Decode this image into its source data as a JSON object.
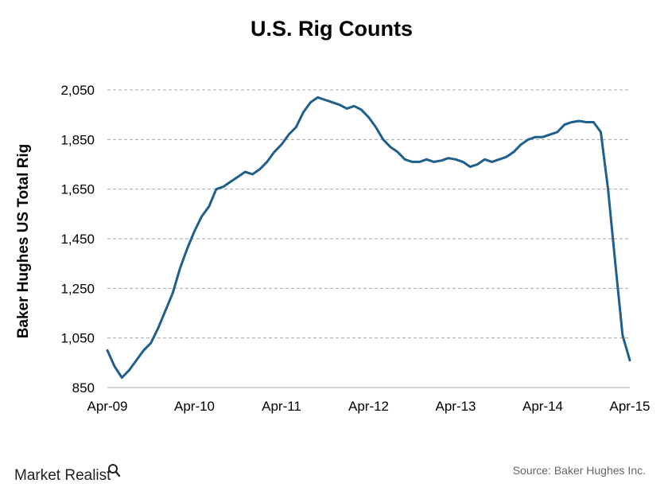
{
  "brand": {
    "name": "Market Realist",
    "icon": "magnifier-icon"
  },
  "source": "Source: Baker Hughes Inc.",
  "chart_data": {
    "type": "line",
    "title": "U.S. Rig Counts",
    "xlabel": "",
    "ylabel": "Baker Hughes US Total Rig",
    "x_ticks": [
      "Apr-09",
      "Apr-10",
      "Apr-11",
      "Apr-12",
      "Apr-13",
      "Apr-14",
      "Apr-15"
    ],
    "xlim": [
      "2009-04",
      "2015-04"
    ],
    "y_ticks": [
      "2,050",
      "1,850",
      "1,650",
      "1,450",
      "1,250",
      "1,050",
      "850"
    ],
    "ylim": [
      850,
      2050
    ],
    "grid": "horizontal dashed",
    "line_color": "#1f5f8b",
    "series": [
      {
        "x": [
          "2009-04",
          "2009-05",
          "2009-06",
          "2009-07",
          "2009-08",
          "2009-09",
          "2009-10",
          "2009-11",
          "2009-12",
          "2010-01",
          "2010-02",
          "2010-03",
          "2010-04",
          "2010-05",
          "2010-06",
          "2010-07",
          "2010-08",
          "2010-09",
          "2010-10",
          "2010-11",
          "2010-12",
          "2011-01",
          "2011-02",
          "2011-03",
          "2011-04",
          "2011-05",
          "2011-06",
          "2011-07",
          "2011-08",
          "2011-09",
          "2011-10",
          "2011-11",
          "2011-12",
          "2012-01",
          "2012-02",
          "2012-03",
          "2012-04",
          "2012-05",
          "2012-06",
          "2012-07",
          "2012-08",
          "2012-09",
          "2012-10",
          "2012-11",
          "2012-12",
          "2013-01",
          "2013-02",
          "2013-03",
          "2013-04",
          "2013-05",
          "2013-06",
          "2013-07",
          "2013-08",
          "2013-09",
          "2013-10",
          "2013-11",
          "2013-12",
          "2014-01",
          "2014-02",
          "2014-03",
          "2014-04",
          "2014-05",
          "2014-06",
          "2014-07",
          "2014-08",
          "2014-09",
          "2014-10",
          "2014-11",
          "2014-12",
          "2015-01",
          "2015-02",
          "2015-03",
          "2015-04"
        ],
        "values": [
          1000,
          935,
          890,
          920,
          960,
          1000,
          1030,
          1090,
          1160,
          1230,
          1330,
          1410,
          1480,
          1540,
          1580,
          1650,
          1660,
          1680,
          1700,
          1720,
          1710,
          1730,
          1760,
          1800,
          1830,
          1870,
          1900,
          1960,
          2000,
          2020,
          2010,
          2000,
          1990,
          1975,
          1985,
          1970,
          1940,
          1900,
          1850,
          1820,
          1800,
          1770,
          1760,
          1760,
          1770,
          1760,
          1765,
          1775,
          1770,
          1760,
          1740,
          1750,
          1770,
          1760,
          1770,
          1780,
          1800,
          1830,
          1850,
          1860,
          1860,
          1870,
          1880,
          1910,
          1920,
          1925,
          1920,
          1920,
          1880,
          1650,
          1350,
          1060,
          960
        ]
      }
    ]
  }
}
